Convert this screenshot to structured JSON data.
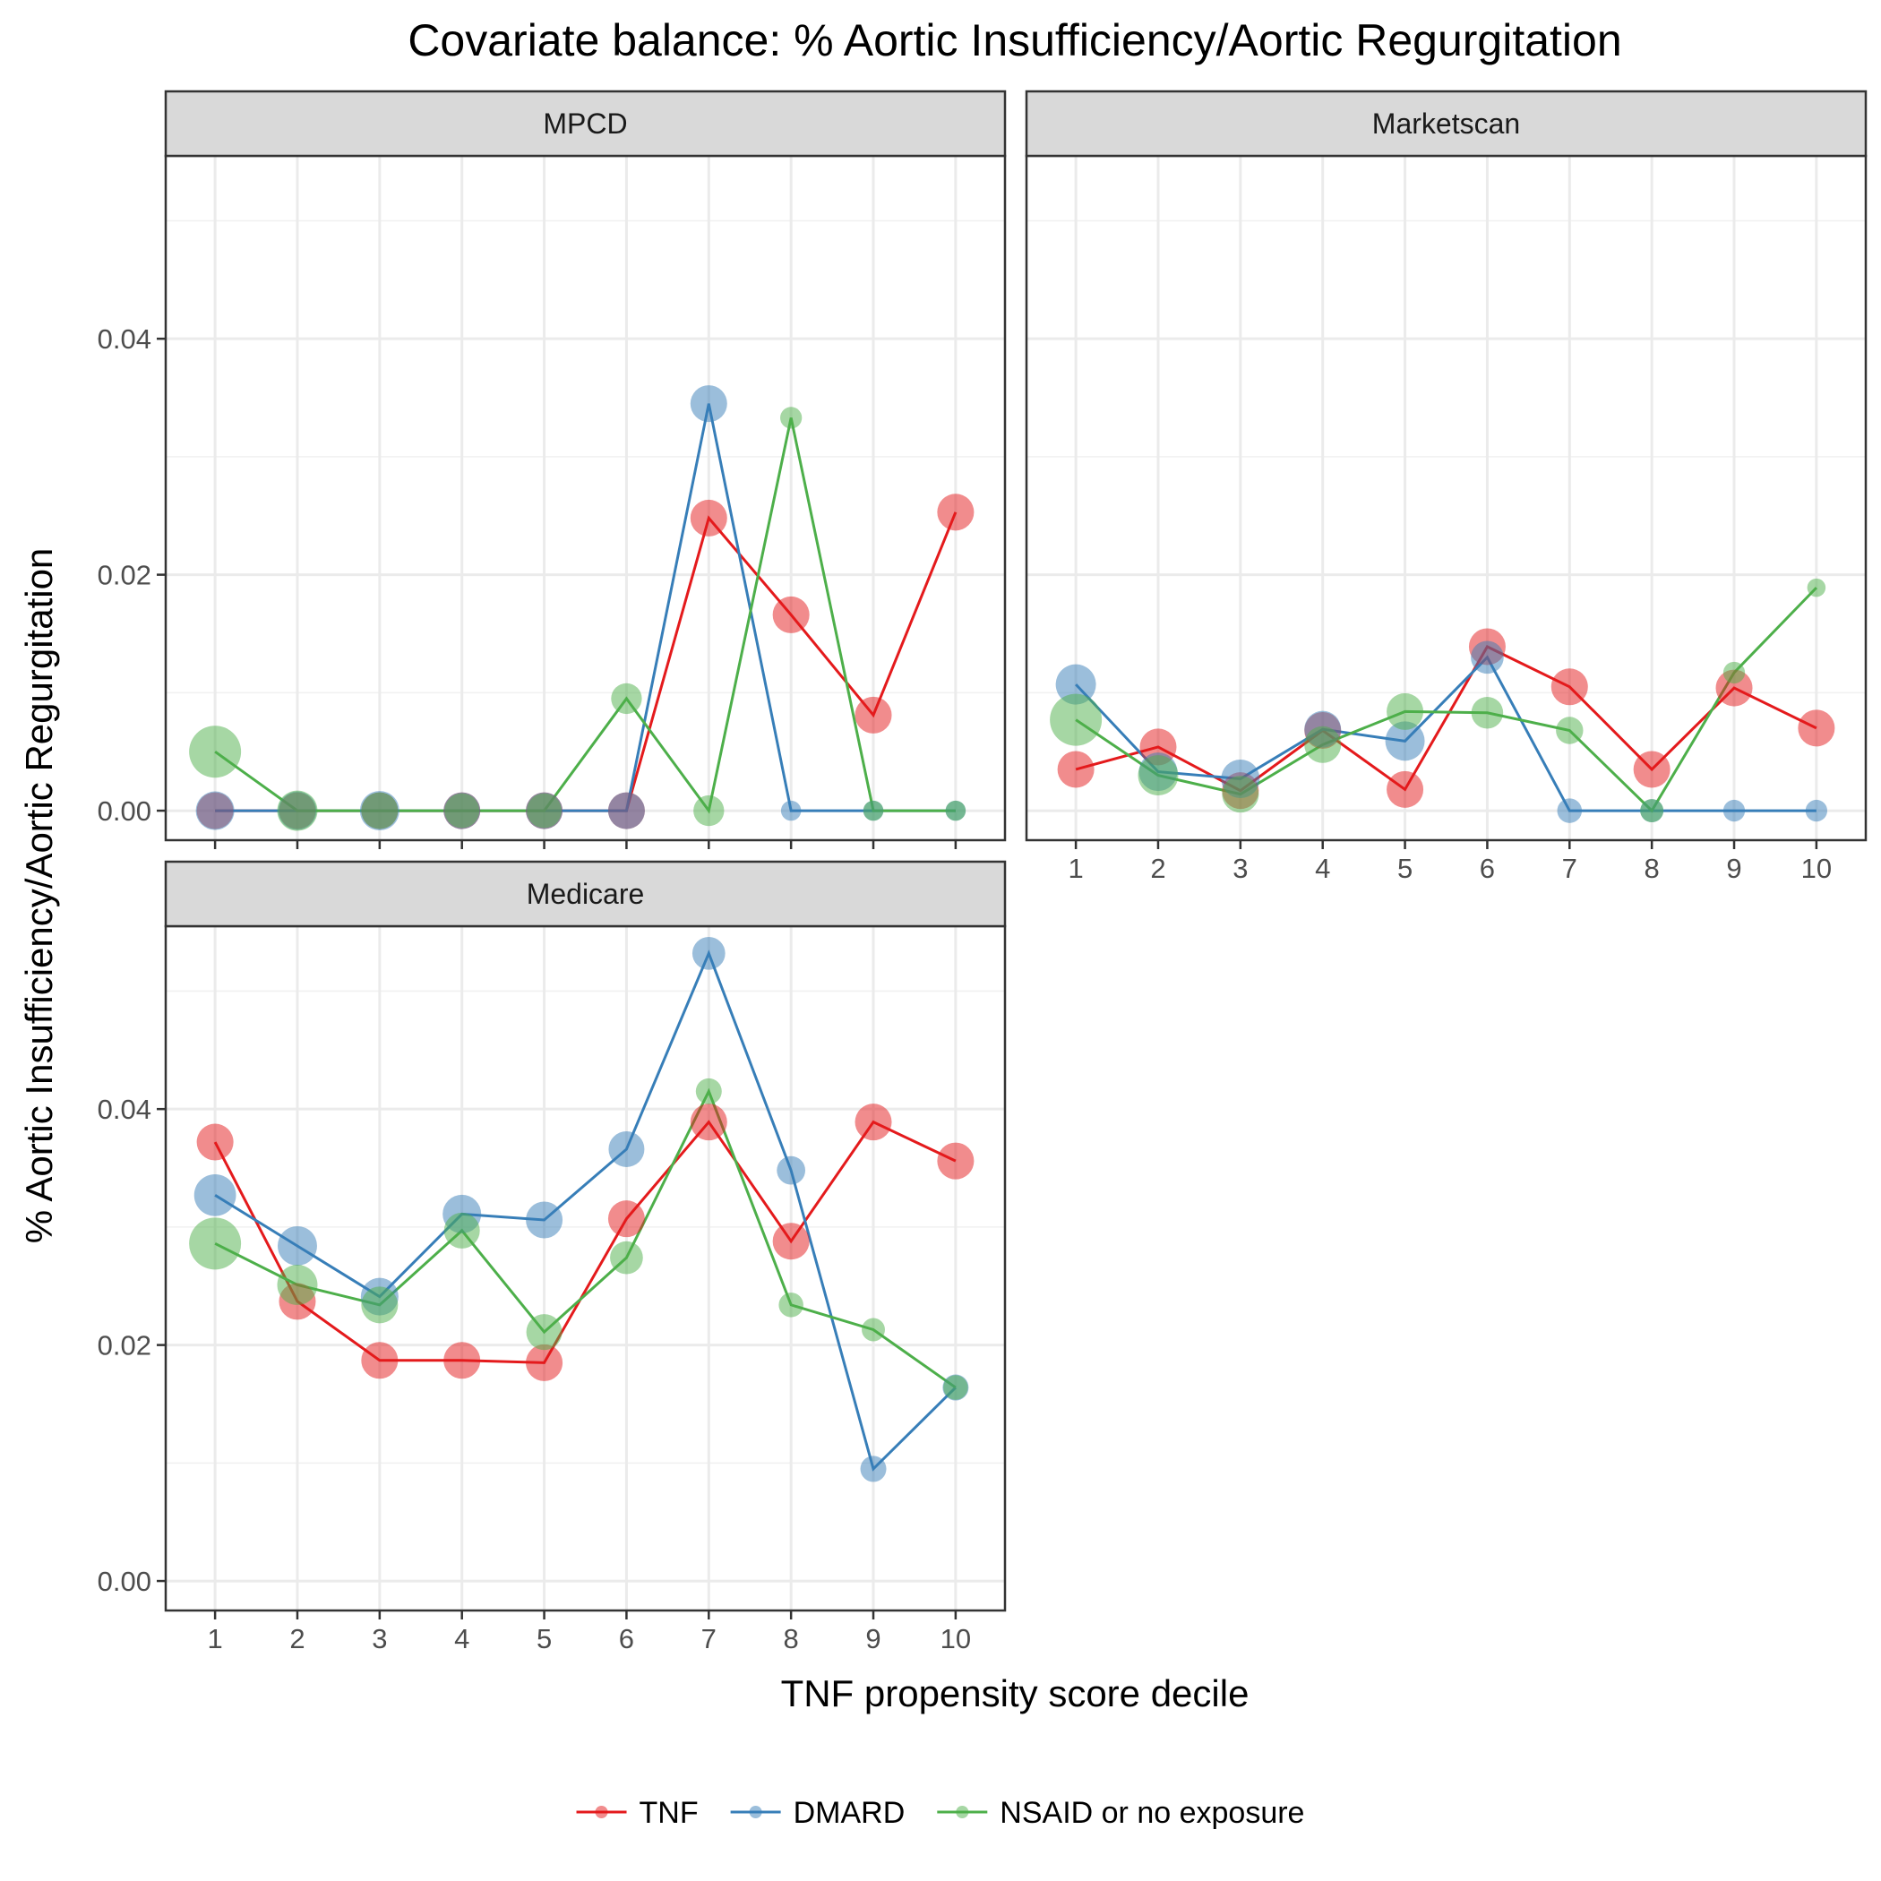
{
  "chart_data": {
    "type": "line",
    "title": "Covariate balance: % Aortic Insufficiency/Aortic Regurgitation",
    "xlabel": "TNF propensity score decile",
    "ylabel": "% Aortic Insufficiency/Aortic Regurgitation",
    "x": [
      1,
      2,
      3,
      4,
      5,
      6,
      7,
      8,
      9,
      10
    ],
    "x_tick_labels": [
      "1",
      "2",
      "3",
      "4",
      "5",
      "6",
      "7",
      "8",
      "9",
      "10"
    ],
    "y_tick_labels": [
      "0.00",
      "0.02",
      "0.04"
    ],
    "y_ticks": [
      0.0,
      0.02,
      0.04
    ],
    "ylim": [
      -0.0025,
      0.0555
    ],
    "xlim": [
      0.4,
      10.6
    ],
    "grid": true,
    "legend_position": "bottom",
    "colors": {
      "TNF": "#e41a1c",
      "DMARD": "#377eb8",
      "NSAID or no exposure": "#4daf4a"
    },
    "legend": [
      {
        "name": "TNF",
        "color": "#e41a1c"
      },
      {
        "name": "DMARD",
        "color": "#377eb8"
      },
      {
        "name": "NSAID or no exposure",
        "color": "#4daf4a"
      }
    ],
    "panels": [
      {
        "label": "MPCD",
        "series": [
          {
            "name": "TNF",
            "values": [
              0.0,
              0.0,
              0.0,
              0.0,
              0.0,
              0.0,
              0.0248,
              0.0166,
              0.0081,
              0.0253
            ],
            "sizes": [
              2,
              2,
              2,
              2,
              2,
              2,
              2,
              2,
              2,
              2
            ]
          },
          {
            "name": "DMARD",
            "values": [
              0.0,
              0.0,
              0.0,
              0.0,
              0.0,
              0.0,
              0.0345,
              0.0,
              0.0,
              0.0
            ],
            "sizes": [
              2.2,
              2.2,
              2.3,
              2,
              2,
              2,
              2,
              0.6,
              0.6,
              0.6
            ]
          },
          {
            "name": "NSAID or no exposure",
            "values": [
              0.005,
              0.0,
              0.0,
              0.0,
              0.0,
              0.0095,
              0.0,
              0.0333,
              0.0,
              0.0
            ],
            "sizes": [
              4,
              2.4,
              2,
              1.8,
              1.8,
              1.4,
              1.4,
              0.7,
              0.6,
              0.6
            ]
          }
        ]
      },
      {
        "label": "Marketscan",
        "series": [
          {
            "name": "TNF",
            "values": [
              0.0035,
              0.0054,
              0.0017,
              0.0068,
              0.0018,
              0.0139,
              0.0105,
              0.0035,
              0.0104,
              0.007
            ],
            "sizes": [
              2,
              2,
              2,
              2,
              2,
              2,
              2,
              2,
              2,
              2
            ]
          },
          {
            "name": "DMARD",
            "values": [
              0.0107,
              0.0033,
              0.0027,
              0.0069,
              0.0059,
              0.013,
              0.0,
              0.0,
              0.0,
              0.0
            ],
            "sizes": [
              2.4,
              2.2,
              2.2,
              2,
              2.3,
              1.6,
              0.9,
              0.8,
              0.7,
              0.7
            ]
          },
          {
            "name": "NSAID or no exposure",
            "values": [
              0.0077,
              0.003,
              0.0014,
              0.0056,
              0.0084,
              0.0083,
              0.0068,
              0.0,
              0.0117,
              0.0189
            ],
            "sizes": [
              4,
              2.4,
              2,
              2,
              2,
              1.5,
              1.1,
              0.8,
              0.7,
              0.5
            ]
          }
        ]
      },
      {
        "label": "Medicare",
        "series": [
          {
            "name": "TNF",
            "values": [
              0.0372,
              0.0237,
              0.0187,
              0.0187,
              0.0185,
              0.0307,
              0.0389,
              0.0288,
              0.0389,
              0.0356
            ],
            "sizes": [
              2,
              2,
              2,
              2,
              2,
              2,
              2,
              2,
              2,
              2
            ]
          },
          {
            "name": "DMARD",
            "values": [
              0.0327,
              0.0284,
              0.0241,
              0.0311,
              0.0306,
              0.0366,
              0.0532,
              0.0348,
              0.0095,
              0.0164
            ],
            "sizes": [
              2.6,
              2.3,
              2.1,
              2.2,
              2,
              1.9,
              1.6,
              1.2,
              1.0,
              1.0
            ]
          },
          {
            "name": "NSAID or no exposure",
            "values": [
              0.0286,
              0.0251,
              0.0234,
              0.0297,
              0.0211,
              0.0274,
              0.0415,
              0.0234,
              0.0213,
              0.0164
            ],
            "sizes": [
              4,
              2.4,
              2,
              1.9,
              1.9,
              1.6,
              1.0,
              0.9,
              0.8,
              0.9
            ]
          }
        ]
      }
    ]
  }
}
